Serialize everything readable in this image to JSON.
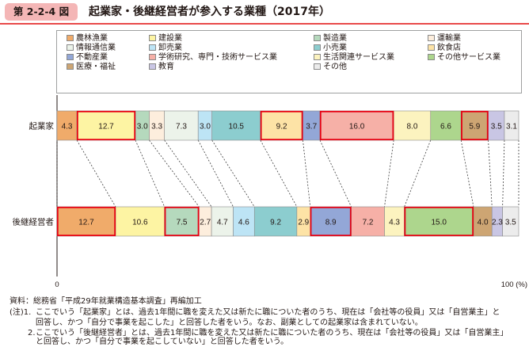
{
  "figure": {
    "tag": "第 2-2-4 図",
    "title": "起業家・後継経営者が参入する業種（2017年）"
  },
  "chart_data": {
    "type": "bar",
    "orientation": "horizontal-stacked-100",
    "categories": [
      "起業家",
      "後継経営者"
    ],
    "series": [
      {
        "name": "農林漁業",
        "color": "#f0ab6a",
        "values": [
          4.3,
          12.7
        ]
      },
      {
        "name": "建設業",
        "color": "#fdf4a3",
        "values": [
          12.7,
          10.6
        ]
      },
      {
        "name": "製造業",
        "color": "#b5d9bd",
        "values": [
          3.0,
          7.5
        ]
      },
      {
        "name": "運輸業",
        "color": "#fdeedd",
        "values": [
          3.3,
          2.7
        ]
      },
      {
        "name": "情報通信業",
        "color": "#ecf3ea",
        "values": [
          7.3,
          4.7
        ]
      },
      {
        "name": "卸売業",
        "color": "#bde4f5",
        "values": [
          3.0,
          4.6
        ]
      },
      {
        "name": "小売業",
        "color": "#8ccdcf",
        "values": [
          10.5,
          9.2
        ]
      },
      {
        "name": "飲食店",
        "color": "#fde3a6",
        "values": [
          9.2,
          2.9
        ]
      },
      {
        "name": "不動産業",
        "color": "#93a7d7",
        "values": [
          3.7,
          8.9
        ]
      },
      {
        "name": "学術研究、専門・技術サービス業",
        "color": "#f6b0a7",
        "values": [
          16.0,
          7.2
        ]
      },
      {
        "name": "生活関連サービス業",
        "color": "#fcf3bf",
        "values": [
          8.0,
          4.3
        ]
      },
      {
        "name": "その他サービス業",
        "color": "#add68d",
        "values": [
          6.6,
          15.0
        ]
      },
      {
        "name": "医療・福祉",
        "color": "#cda573",
        "values": [
          5.9,
          4.0
        ]
      },
      {
        "name": "教育",
        "color": "#c9c6e4",
        "values": [
          3.5,
          2.3
        ]
      },
      {
        "name": "その他",
        "color": "#ececec",
        "values": [
          3.1,
          3.5
        ]
      }
    ],
    "highlighted": {
      "起業家": [
        "建設業",
        "飲食店",
        "学術研究、専門・技術サービス業",
        "医療・福祉"
      ],
      "後継経営者": [
        "農林漁業",
        "製造業",
        "不動産業",
        "その他サービス業"
      ]
    },
    "highlight_color": "#e60012",
    "x_axis": {
      "min": 0,
      "max": 100,
      "tick_min_label": "0",
      "tick_max_label": "100 (%)"
    },
    "legend_position": "top",
    "grid": false
  },
  "source": "資料：総務省「平成29年就業構造基本調査」再編加工",
  "notes": [
    {
      "prefix": "(注)1.",
      "lines": [
        "ここでいう「起業家」とは、過去1年間に職を変えた又は新たに職についた者のうち、現在は「会社等の役員」又は「自営業主」と",
        "回答し、かつ「自分で事業を起こした」と回答した者をいう。なお、副業としての起業家は含まれていない。"
      ]
    },
    {
      "prefix": "2.",
      "lines": [
        "ここでいう「後継経営者」とは、過去1年間に職を変えた又は新たに職についた者のうち、現在は「会社等の役員」又は「自営業主」",
        "と回答し、かつ「自分で事業を起こしていない」と回答した者をいう。"
      ]
    }
  ]
}
